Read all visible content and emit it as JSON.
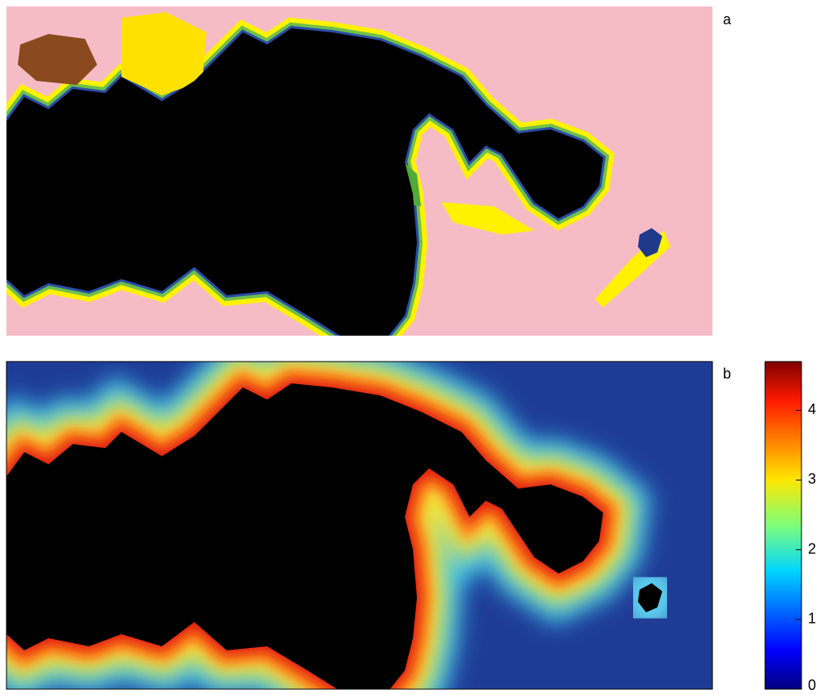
{
  "panels": [
    {
      "label": "a"
    },
    {
      "label": "b"
    }
  ],
  "colorbar": {
    "lim": [
      0,
      4.7
    ],
    "ticks": [
      0,
      1,
      2,
      3,
      4
    ]
  }
}
